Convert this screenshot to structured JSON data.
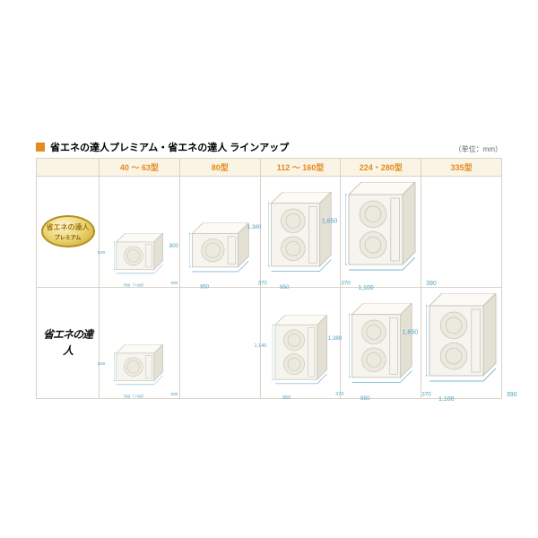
{
  "title": "省エネの達人プレミアム・省エネの達人 ラインアップ",
  "unit_note": "（単位：mm）",
  "accent_color": "#e58a1f",
  "header_bg": "#faf4e5",
  "header_text_color": "#e58a1f",
  "border_color": "#d9d2c5",
  "dim_color": "#4da0c3",
  "cols": [
    {
      "label": "40 ～ 63型"
    },
    {
      "label": "80型"
    },
    {
      "label": "112 ～ 160型"
    },
    {
      "label": "224・280型"
    },
    {
      "label": "335型"
    }
  ],
  "rows": [
    {
      "key": "premium",
      "badge": {
        "main": "省エネの達人",
        "sub": "プレミアム"
      },
      "cells": [
        {
          "fans": 1,
          "height": "629",
          "width": "799（+99）",
          "depth": "300",
          "scale": 0.7
        },
        {
          "fans": 1,
          "height": "800",
          "width": "950",
          "depth": "370",
          "scale": 0.85
        },
        {
          "fans": 2,
          "height": "1,380",
          "width": "950",
          "depth": "370",
          "scale": 0.9
        },
        {
          "fans": 2,
          "height": "1,650",
          "width": "1,100",
          "depth": "390",
          "scale": 1.0
        },
        null
      ]
    },
    {
      "key": "standard",
      "label": "省エネの達人",
      "cells": [
        {
          "fans": 1,
          "height": "629",
          "width": "799（+99）",
          "depth": "300",
          "scale": 0.7
        },
        null,
        {
          "fans": 2,
          "height": "1,140",
          "width": "950",
          "depth": "370",
          "scale": 0.78
        },
        {
          "fans": 2,
          "height": "1,380",
          "width": "950",
          "depth": "370",
          "scale": 0.9
        },
        {
          "fans": 2,
          "height": "1,650",
          "width": "1,100",
          "depth": "390",
          "scale": 1.0
        }
      ]
    }
  ]
}
